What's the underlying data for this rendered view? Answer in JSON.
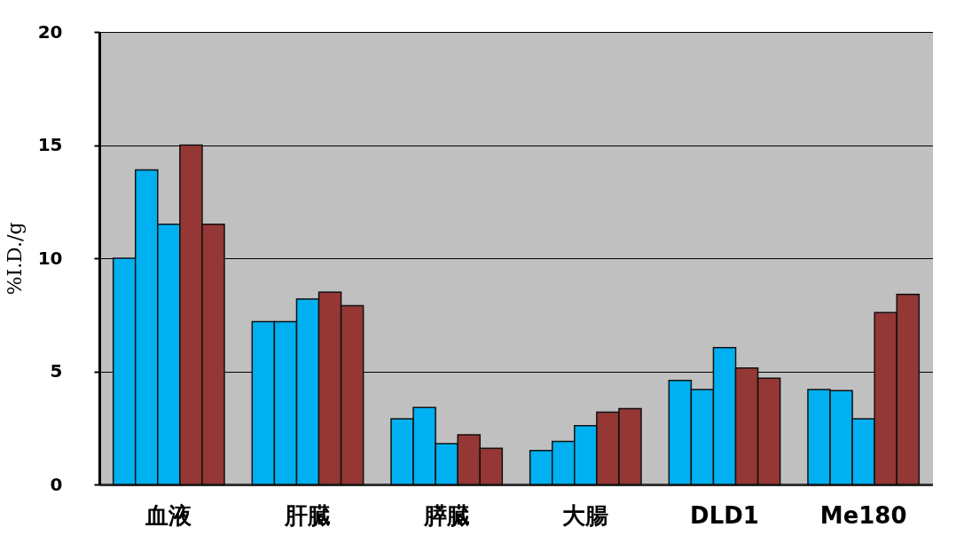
{
  "chart_data": {
    "type": "bar",
    "ylabel": "%I.D./g",
    "categories": [
      "血液",
      "肝臓",
      "膵臓",
      "大腸",
      "DLD1",
      "Me180"
    ],
    "series": [
      {
        "color": "#00b0f0",
        "values": [
          10,
          7.2,
          2.9,
          1.5,
          4.6,
          4.2
        ]
      },
      {
        "color": "#00b0f0",
        "values": [
          13.9,
          7.2,
          3.4,
          1.9,
          4.2,
          4.15
        ]
      },
      {
        "color": "#00b0f0",
        "values": [
          11.5,
          8.2,
          1.8,
          2.6,
          6.05,
          2.9
        ]
      },
      {
        "color": "#953735",
        "values": [
          15,
          8.5,
          2.2,
          3.2,
          5.15,
          7.6
        ]
      },
      {
        "color": "#953735",
        "values": [
          11.5,
          7.9,
          1.6,
          3.35,
          4.7,
          8.4
        ]
      }
    ],
    "ylim": [
      0,
      20
    ],
    "yticks": [
      0,
      5,
      10,
      15,
      20
    ],
    "grid": "y",
    "legend": false
  }
}
